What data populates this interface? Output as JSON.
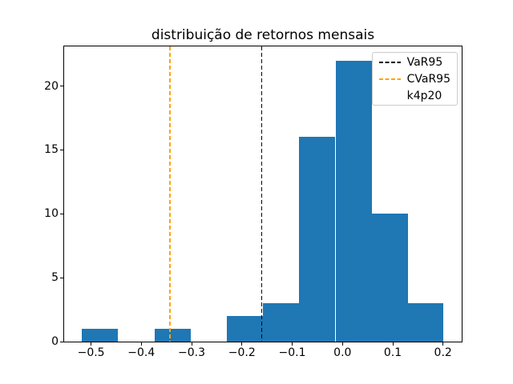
{
  "figure": {
    "background": "#ffffff"
  },
  "chart_data": {
    "type": "bar",
    "subtype": "histogram",
    "title": "distribuição de retornos mensais",
    "xlabel": "",
    "ylabel": "",
    "grid": false,
    "bar_color": "#1f77b4",
    "bin_edges": [
      -0.518,
      -0.446,
      -0.374,
      -0.302,
      -0.23,
      -0.158,
      -0.086,
      -0.014,
      0.058,
      0.13,
      0.201
    ],
    "counts": [
      1,
      0,
      1,
      0,
      2,
      3,
      16,
      22,
      10,
      3
    ],
    "xlim": [
      -0.5535,
      0.2371
    ],
    "ylim": [
      0,
      23.1
    ],
    "xticks": [
      {
        "value": -0.5,
        "label": "−0.5"
      },
      {
        "value": -0.4,
        "label": "−0.4"
      },
      {
        "value": -0.3,
        "label": "−0.3"
      },
      {
        "value": -0.2,
        "label": "−0.2"
      },
      {
        "value": -0.1,
        "label": "−0.1"
      },
      {
        "value": 0.0,
        "label": "0.0"
      },
      {
        "value": 0.1,
        "label": "0.1"
      },
      {
        "value": 0.2,
        "label": "0.2"
      }
    ],
    "yticks": [
      {
        "value": 0,
        "label": "0"
      },
      {
        "value": 5,
        "label": "5"
      },
      {
        "value": 10,
        "label": "10"
      },
      {
        "value": 15,
        "label": "15"
      },
      {
        "value": 20,
        "label": "20"
      }
    ],
    "vlines": [
      {
        "name": "VaR95",
        "x": -0.161,
        "color": "#000000",
        "linestyle": "dashed"
      },
      {
        "name": "CVaR95",
        "x": -0.343,
        "color": "#ffa500",
        "linestyle": "dashed"
      }
    ],
    "legend": {
      "position": "upper right",
      "entries": [
        {
          "label": "VaR95",
          "handle": "dashed-line",
          "color": "#000000"
        },
        {
          "label": "CVaR95",
          "handle": "dashed-line",
          "color": "#ffa500"
        },
        {
          "label": "k4p20",
          "handle": "none",
          "color": ""
        }
      ]
    }
  }
}
